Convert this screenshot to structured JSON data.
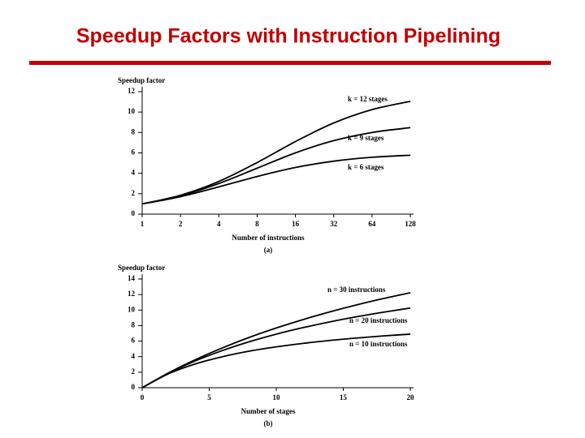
{
  "title": "Speedup Factors with Instruction Pipelining",
  "chart_data": [
    {
      "type": "line",
      "y_label": "Speedup factor",
      "x_label": "Number of instructions",
      "caption": "(a)",
      "x": [
        1,
        2,
        4,
        8,
        16,
        32,
        64,
        128
      ],
      "xscale": "log",
      "log_base": 2,
      "xlim": [
        1,
        128
      ],
      "xticks": [
        1,
        2,
        4,
        8,
        16,
        32,
        64,
        128
      ],
      "ylim": [
        0,
        12
      ],
      "yticks": [
        0,
        2,
        4,
        6,
        8,
        10,
        12
      ],
      "color": "#000000",
      "series": [
        {
          "name": "k = 12 stages",
          "values": [
            1,
            1.85,
            3.2,
            5.05,
            7.11,
            8.93,
            10.24,
            11.05
          ]
        },
        {
          "name": "k = 9 stages",
          "values": [
            1,
            1.8,
            3,
            4.5,
            6,
            7.2,
            8,
            8.47
          ]
        },
        {
          "name": "k = 6 stages",
          "values": [
            1,
            1.71,
            2.67,
            3.69,
            4.57,
            5.19,
            5.57,
            5.77
          ]
        }
      ]
    },
    {
      "type": "line",
      "y_label": "Speedup factor",
      "x_label": "Number of stages",
      "caption": "(b)",
      "x": [
        0,
        2,
        4,
        6,
        8,
        10,
        12,
        14,
        16,
        18,
        20
      ],
      "xlim": [
        0,
        20
      ],
      "xticks": [
        0,
        5,
        10,
        15,
        20
      ],
      "ylim": [
        0,
        14
      ],
      "yticks": [
        0,
        2,
        4,
        6,
        8,
        10,
        12,
        14
      ],
      "color": "#000000",
      "series": [
        {
          "name": "n = 30 instructions",
          "values": [
            0,
            1.94,
            3.64,
            5.14,
            6.49,
            7.69,
            8.78,
            9.77,
            10.67,
            11.49,
            12.24
          ]
        },
        {
          "name": "n = 20 instructions",
          "values": [
            0,
            1.9,
            3.48,
            4.8,
            5.93,
            6.9,
            7.74,
            8.48,
            9.14,
            9.73,
            10.26
          ]
        },
        {
          "name": "n = 10 instructions",
          "values": [
            0,
            1.82,
            3.08,
            4,
            4.71,
            5.26,
            5.71,
            6.09,
            6.4,
            6.67,
            6.9
          ]
        }
      ]
    }
  ]
}
